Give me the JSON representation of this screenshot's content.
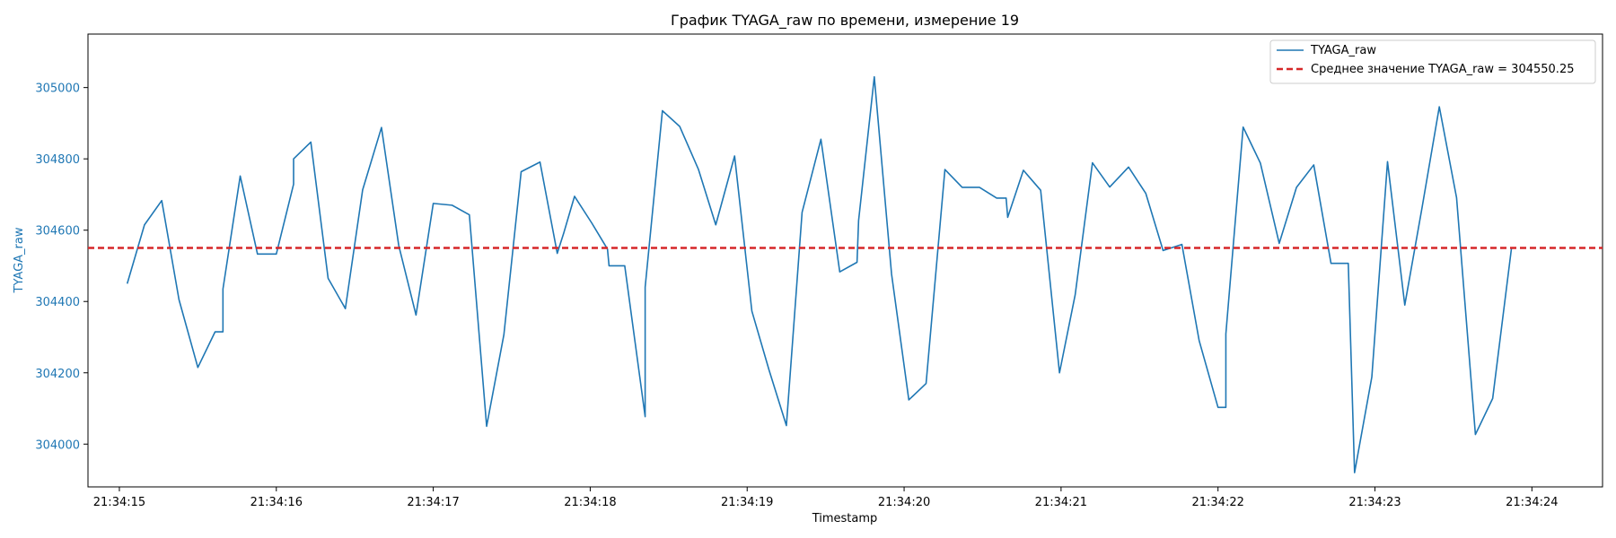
{
  "chart_data": {
    "type": "line",
    "title": "График TYAGA_raw по времени, измерение 19",
    "xlabel": "Timestamp",
    "ylabel": "TYAGA_raw",
    "xlim": [
      14.8,
      24.45
    ],
    "ylim": [
      303880,
      305150
    ],
    "x_ticks": [
      15,
      16,
      17,
      18,
      19,
      20,
      21,
      22,
      23,
      24
    ],
    "x_tick_labels": [
      "21:34:15",
      "21:34:16",
      "21:34:17",
      "21:34:18",
      "21:34:19",
      "21:34:20",
      "21:34:21",
      "21:34:22",
      "21:34:23",
      "21:34:24"
    ],
    "y_ticks": [
      304000,
      304200,
      304400,
      304600,
      304800,
      305000
    ],
    "y_tick_labels": [
      "304000",
      "304200",
      "304400",
      "304600",
      "304800",
      "305000"
    ],
    "legend_position": "top-right",
    "grid": false,
    "colors": {
      "series": "#1f77b4",
      "mean": "#d62728",
      "ylabel": "#1f77b4"
    },
    "series": [
      {
        "name": "TYAGA_raw",
        "x": [
          15.05,
          15.16,
          15.27,
          15.38,
          15.5,
          15.61,
          15.66,
          15.66,
          15.77,
          15.88,
          16.0,
          16.11,
          16.11,
          16.22,
          16.33,
          16.44,
          16.55,
          16.67,
          16.78,
          16.89,
          17.0,
          17.12,
          17.23,
          17.34,
          17.45,
          17.56,
          17.68,
          17.79,
          17.83,
          17.9,
          18.01,
          18.11,
          18.12,
          18.22,
          18.35,
          18.35,
          18.46,
          18.57,
          18.69,
          18.8,
          18.92,
          19.03,
          19.14,
          19.25,
          19.35,
          19.47,
          19.59,
          19.7,
          19.71,
          19.81,
          19.92,
          20.03,
          20.14,
          20.26,
          20.37,
          20.48,
          20.59,
          20.65,
          20.66,
          20.76,
          20.87,
          20.99,
          21.09,
          21.2,
          21.31,
          21.43,
          21.54,
          21.65,
          21.77,
          21.88,
          22.0,
          22.05,
          22.05,
          22.16,
          22.27,
          22.39,
          22.5,
          22.61,
          22.72,
          22.83,
          22.87,
          22.98,
          23.08,
          23.19,
          23.3,
          23.41,
          23.52,
          23.64,
          23.75,
          23.87
        ],
        "y": [
          304450,
          304615,
          304683,
          304405,
          304215,
          304315,
          304315,
          304435,
          304752,
          304533,
          304533,
          304729,
          304800,
          304847,
          304465,
          304380,
          304713,
          304888,
          304557,
          304362,
          304675,
          304670,
          304643,
          304050,
          304307,
          304764,
          304791,
          304535,
          304590,
          304695,
          304620,
          304547,
          304500,
          304500,
          304077,
          304440,
          304935,
          304891,
          304770,
          304615,
          304808,
          304373,
          304207,
          304052,
          304650,
          304855,
          304483,
          304510,
          304627,
          305030,
          304477,
          304124,
          304170,
          304770,
          304720,
          304720,
          304690,
          304690,
          304636,
          304768,
          304712,
          304200,
          304419,
          304789,
          304721,
          304777,
          304703,
          304543,
          304560,
          304290,
          304103,
          304103,
          304309,
          304889,
          304788,
          304563,
          304720,
          304783,
          304507,
          304507,
          303920,
          304188,
          304792,
          304390,
          304663,
          304946,
          304691,
          304027,
          304128,
          304550
        ]
      }
    ],
    "mean_line": {
      "value": 304550.25,
      "label": "Среднее значение TYAGA_raw = 304550.25"
    }
  }
}
